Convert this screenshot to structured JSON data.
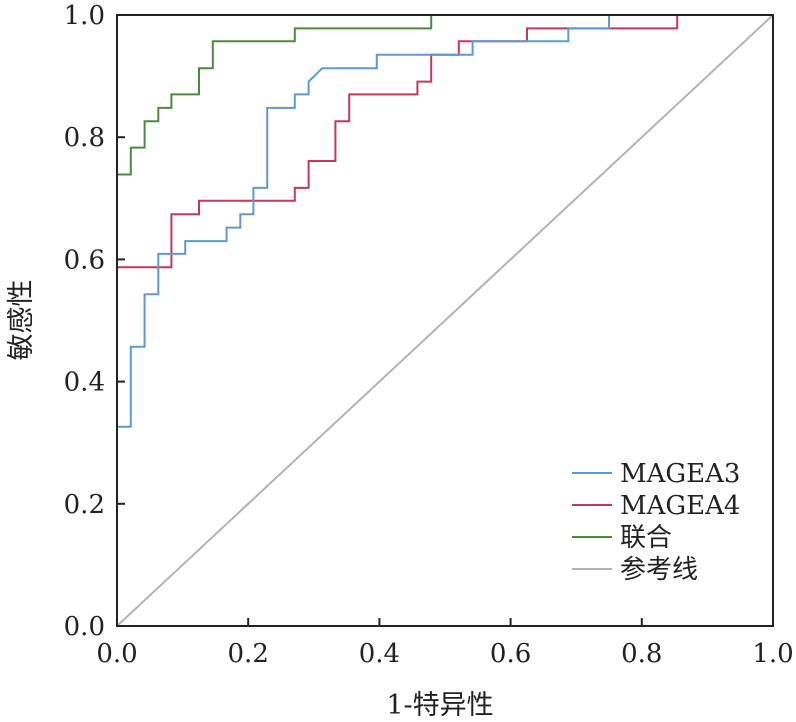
{
  "chart_data": {
    "type": "line",
    "title": "",
    "xlabel": "1-特异性",
    "ylabel": "敏感性",
    "xlim": [
      0,
      1
    ],
    "ylim": [
      0,
      1
    ],
    "x_ticks": [
      "0.0",
      "0.2",
      "0.4",
      "0.6",
      "0.8",
      "1.0"
    ],
    "y_ticks": [
      "0.0",
      "0.2",
      "0.4",
      "0.6",
      "0.8",
      "1.0"
    ],
    "legend_position": "bottom-right",
    "grid": false,
    "series": [
      {
        "name": "MAGEA3",
        "color": "#5b9bd5",
        "points": [
          [
            0,
            0.326
          ],
          [
            0.021,
            0.326
          ],
          [
            0.021,
            0.457
          ],
          [
            0.042,
            0.457
          ],
          [
            0.042,
            0.543
          ],
          [
            0.063,
            0.543
          ],
          [
            0.063,
            0.609
          ],
          [
            0.083,
            0.609
          ],
          [
            0.083,
            0.609
          ],
          [
            0.104,
            0.609
          ],
          [
            0.104,
            0.63
          ],
          [
            0.167,
            0.63
          ],
          [
            0.167,
            0.652
          ],
          [
            0.188,
            0.652
          ],
          [
            0.188,
            0.674
          ],
          [
            0.208,
            0.674
          ],
          [
            0.208,
            0.717
          ],
          [
            0.229,
            0.717
          ],
          [
            0.229,
            0.848
          ],
          [
            0.271,
            0.848
          ],
          [
            0.271,
            0.87
          ],
          [
            0.292,
            0.87
          ],
          [
            0.292,
            0.891
          ],
          [
            0.313,
            0.913
          ],
          [
            0.396,
            0.913
          ],
          [
            0.396,
            0.935
          ],
          [
            0.542,
            0.935
          ],
          [
            0.542,
            0.957
          ],
          [
            0.688,
            0.957
          ],
          [
            0.688,
            0.978
          ],
          [
            0.75,
            0.978
          ],
          [
            0.75,
            1.0
          ],
          [
            1.0,
            1.0
          ]
        ]
      },
      {
        "name": "MAGEA4",
        "color": "#c8365e",
        "points": [
          [
            0,
            0.587
          ],
          [
            0.083,
            0.587
          ],
          [
            0.083,
            0.674
          ],
          [
            0.125,
            0.674
          ],
          [
            0.125,
            0.696
          ],
          [
            0.271,
            0.696
          ],
          [
            0.271,
            0.717
          ],
          [
            0.292,
            0.717
          ],
          [
            0.292,
            0.761
          ],
          [
            0.333,
            0.761
          ],
          [
            0.333,
            0.826
          ],
          [
            0.354,
            0.826
          ],
          [
            0.354,
            0.87
          ],
          [
            0.458,
            0.87
          ],
          [
            0.458,
            0.891
          ],
          [
            0.479,
            0.891
          ],
          [
            0.479,
            0.935
          ],
          [
            0.521,
            0.935
          ],
          [
            0.521,
            0.957
          ],
          [
            0.625,
            0.957
          ],
          [
            0.625,
            0.978
          ],
          [
            0.854,
            0.978
          ],
          [
            0.854,
            1.0
          ],
          [
            1.0,
            1.0
          ]
        ]
      },
      {
        "name": "联合",
        "color": "#4e8a3e",
        "points": [
          [
            0,
            0.739
          ],
          [
            0.021,
            0.739
          ],
          [
            0.021,
            0.783
          ],
          [
            0.042,
            0.783
          ],
          [
            0.042,
            0.826
          ],
          [
            0.063,
            0.826
          ],
          [
            0.063,
            0.848
          ],
          [
            0.083,
            0.848
          ],
          [
            0.083,
            0.87
          ],
          [
            0.125,
            0.87
          ],
          [
            0.125,
            0.913
          ],
          [
            0.146,
            0.913
          ],
          [
            0.146,
            0.957
          ],
          [
            0.271,
            0.957
          ],
          [
            0.271,
            0.978
          ],
          [
            0.479,
            0.978
          ],
          [
            0.479,
            1.0
          ],
          [
            1.0,
            1.0
          ]
        ]
      },
      {
        "name": "参考线",
        "color": "#b3b3b3",
        "points": [
          [
            0,
            0
          ],
          [
            1,
            1
          ]
        ]
      }
    ]
  }
}
